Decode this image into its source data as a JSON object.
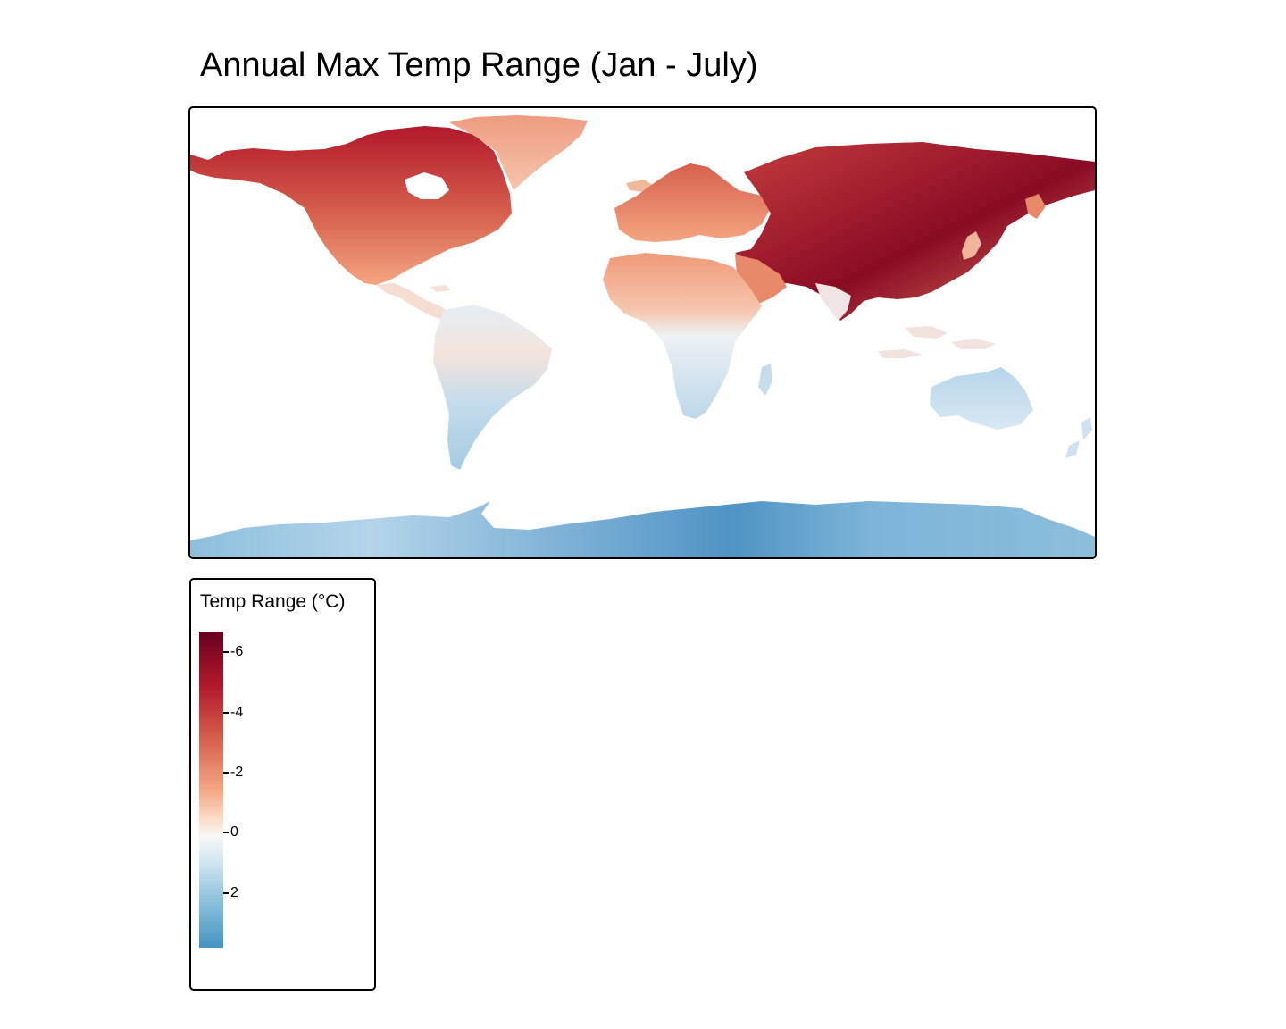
{
  "title": "Annual Max Temp Range (Jan - July)",
  "legend": {
    "title": "Temp Range (°C)",
    "ticks": [
      "-6",
      "-4",
      "-2",
      "0",
      "2"
    ]
  },
  "colors": {
    "scale": [
      "#67001f",
      "#b2182b",
      "#d6604d",
      "#f4a582",
      "#fddbc7",
      "#f7f7f7",
      "#d1e5f0",
      "#92c5de",
      "#4393c3",
      "#2166ac"
    ],
    "panel_border": "#000000",
    "background": "#ffffff"
  }
}
